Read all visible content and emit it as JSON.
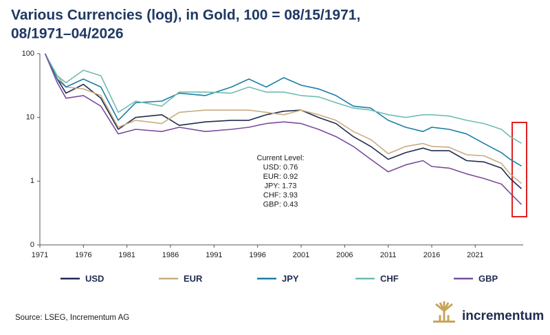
{
  "chart_data": {
    "type": "line",
    "title": [
      "Various Currencies (log), in Gold, 100 = 08/15/1971,",
      "08/1971–04/2026"
    ],
    "x": [
      1971.6,
      1973,
      1974,
      1976,
      1978,
      1980,
      1982,
      1985,
      1987,
      1990,
      1993,
      1995,
      1997,
      1999,
      2001,
      2003,
      2005,
      2007,
      2009,
      2011,
      2013,
      2015,
      2016,
      2018,
      2020,
      2022,
      2024,
      2025,
      2026.3
    ],
    "series": [
      {
        "name": "USD",
        "color": "#1f2a4f",
        "values": [
          100,
          40,
          24,
          33,
          20,
          6.5,
          10,
          11,
          7.5,
          8.5,
          9,
          9,
          11,
          12.5,
          13,
          10,
          8,
          5,
          3.5,
          2.2,
          2.8,
          3.3,
          3,
          3,
          2.1,
          2.0,
          1.6,
          1.1,
          0.76
        ]
      },
      {
        "name": "EUR",
        "color": "#c8ad7f",
        "values": [
          100,
          45,
          30,
          28,
          22,
          7,
          9,
          8,
          12,
          13,
          13,
          13,
          12,
          11,
          13,
          11,
          9,
          6,
          4.5,
          2.7,
          3.5,
          3.9,
          3.5,
          3.4,
          2.6,
          2.5,
          1.9,
          1.3,
          0.92
        ]
      },
      {
        "name": "JPY",
        "color": "#1a7ca8",
        "values": [
          100,
          40,
          30,
          40,
          30,
          9,
          17,
          18,
          24,
          22,
          30,
          40,
          30,
          42,
          32,
          28,
          22,
          15,
          14,
          9,
          7,
          6,
          7,
          6.5,
          5.5,
          3.9,
          2.8,
          2.2,
          1.73
        ]
      },
      {
        "name": "CHF",
        "color": "#6fbcb0",
        "values": [
          100,
          45,
          35,
          55,
          45,
          12,
          18,
          15,
          25,
          25,
          24,
          30,
          25,
          25,
          22,
          21,
          17,
          14,
          13,
          11,
          10,
          11,
          11,
          10.5,
          9,
          8,
          6.5,
          5,
          3.93
        ]
      },
      {
        "name": "GBP",
        "color": "#7b4a9b",
        "values": [
          100,
          35,
          20,
          22,
          15,
          5.5,
          6.5,
          6,
          7,
          6,
          6.5,
          7,
          8,
          8.5,
          8,
          6.5,
          5,
          3.5,
          2.2,
          1.4,
          1.8,
          2.1,
          1.7,
          1.6,
          1.3,
          1.1,
          0.9,
          0.65,
          0.43
        ]
      }
    ],
    "log_scale": true,
    "xlim": [
      1971,
      2026.5
    ],
    "xticks": [
      1971,
      1976,
      1981,
      1986,
      1991,
      1996,
      2001,
      2006,
      2011,
      2016,
      2021
    ],
    "ylim": [
      0.1,
      100
    ],
    "yticks": [
      {
        "value": 0.1,
        "label": "0"
      },
      1,
      10,
      100
    ],
    "annotation": [
      "Current Level:",
      "USD: 0.76",
      "EUR: 0.92",
      "JPY: 1.73",
      "CHF: 3.93",
      "GBP: 0.43"
    ]
  },
  "footer": {
    "source": "Source: LSEG, Incrementum AG",
    "brand": "incrementum"
  }
}
